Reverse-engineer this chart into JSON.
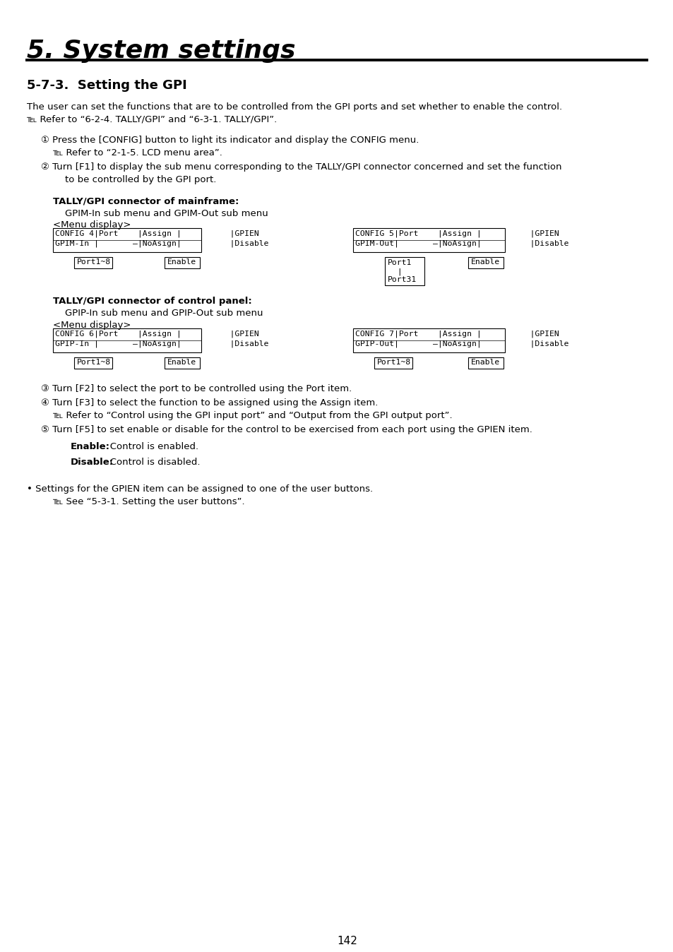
{
  "title": "5. System settings",
  "section": "5-7-3.  Setting the GPI",
  "bg_color": "#ffffff",
  "text_color": "#000000",
  "page_number": "142",
  "body_line1": "The user can set the functions that are to be controlled from the GPI ports and set whether to enable the control.",
  "body_line2": "℡ Refer to “6-2-4. TALLY/GPI” and “6-3-1. TALLY/GPI”.",
  "step1_line1": "① Press the [CONFIG] button to light its indicator and display the CONFIG menu.",
  "step1_line2": "℡ Refer to “2-1-5. LCD menu area”.",
  "step2_line1": "② Turn [F1] to display the sub menu corresponding to the TALLY/GPI connector concerned and set the function",
  "step2_line2": "    to be controlled by the GPI port.",
  "tally_mainframe_bold": "TALLY/GPI connector of mainframe:",
  "tally_mainframe_sub": "GPIM-In sub menu and GPIM-Out sub menu",
  "menu_display_label": "<Menu display>",
  "tally_panel_bold": "TALLY/GPI connector of control panel:",
  "tally_panel_sub": "GPIP-In sub menu and GPIP-Out sub menu",
  "step3": "③ Turn [F2] to select the port to be controlled using the Port item.",
  "step4_line1": "④ Turn [F3] to select the function to be assigned using the Assign item.",
  "step4_line2": "    ℡ Refer to “Control using the GPI input port” and “Output from the GPI output port”.",
  "step5": "⑤ Turn [F5] to set enable or disable for the control to be exercised from each port using the GPIEN item.",
  "enable_label": "Enable:",
  "enable_text": "   Control is enabled.",
  "disable_label": "Disable:",
  "disable_text": "   Control is disabled.",
  "bullet_line1": "• Settings for the GPIEN item can be assigned to one of the user buttons.",
  "bullet_line2": "    ℡ See “5-3-1. Setting the user buttons”.",
  "box1_row1": "CONFIG 4|Port    |Assign |          |GPIEN",
  "box1_row2": "GPIM-In |       –|NoAsign|          |Disable",
  "box2_row1": "CONFIG 5|Port    |Assign |          |GPIEN",
  "box2_row2": "GPIM-Out|       –|NoAsign|          |Disable",
  "box3_row1": "CONFIG 6|Port    |Assign |          |GPIEN",
  "box3_row2": "GPIP-In |       –|NoAsign|          |Disable",
  "box4_row1": "CONFIG 7|Port    |Assign |          |GPIEN",
  "box4_row2": "GPIP-Out|       –|NoAsign|          |Disable"
}
